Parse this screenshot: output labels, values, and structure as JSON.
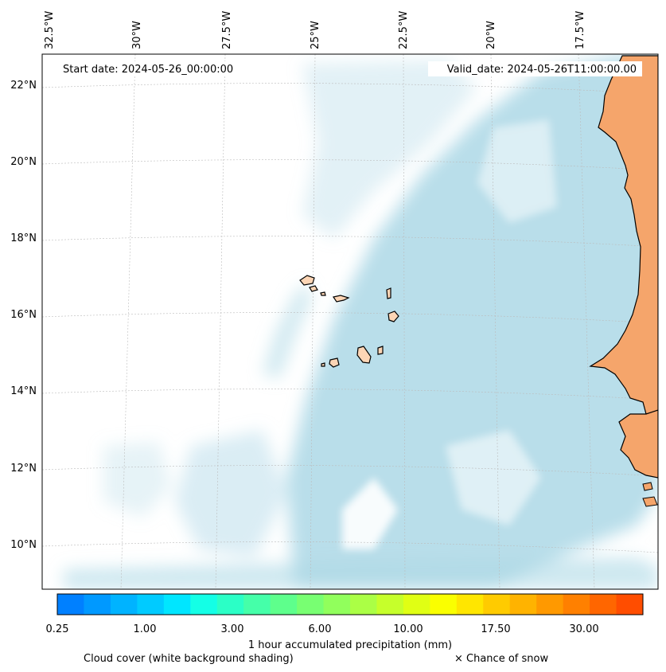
{
  "header": {
    "start_date": "Start date: 2024-05-26_00:00:00",
    "valid_date": "Valid_date: 2024-05-26T11:00:00.00"
  },
  "axes": {
    "lon_labels": [
      "32.5°W",
      "30°W",
      "27.5°W",
      "25°W",
      "22.5°W",
      "20°W",
      "17.5°W"
    ],
    "lat_labels": [
      "22°N",
      "20°N",
      "18°N",
      "16°N",
      "14°N",
      "12°N",
      "10°N"
    ]
  },
  "colorbar": {
    "colors": [
      "#0080ff",
      "#0099ff",
      "#00b3ff",
      "#00cbff",
      "#00e6ff",
      "#14ffe6",
      "#2bffc6",
      "#45ffa9",
      "#5eff8c",
      "#78ff72",
      "#91ff5c",
      "#abff45",
      "#c6ff2b",
      "#e0ff14",
      "#faff00",
      "#ffe600",
      "#ffcb00",
      "#ffb300",
      "#ff9900",
      "#ff8000",
      "#ff6600",
      "#ff4d00"
    ],
    "tick_labels": [
      "0.25",
      "1.00",
      "3.00",
      "6.00",
      "10.00",
      "17.50",
      "30.00"
    ],
    "title": "1 hour accumulated precipitation (mm)"
  },
  "footer": {
    "cloud_cover": "Cloud cover (white background shading)",
    "snow": "× Chance of snow"
  },
  "colors": {
    "land": "#f5a56b",
    "islands": "#fcd5b5",
    "cloud": "#add8e6"
  }
}
